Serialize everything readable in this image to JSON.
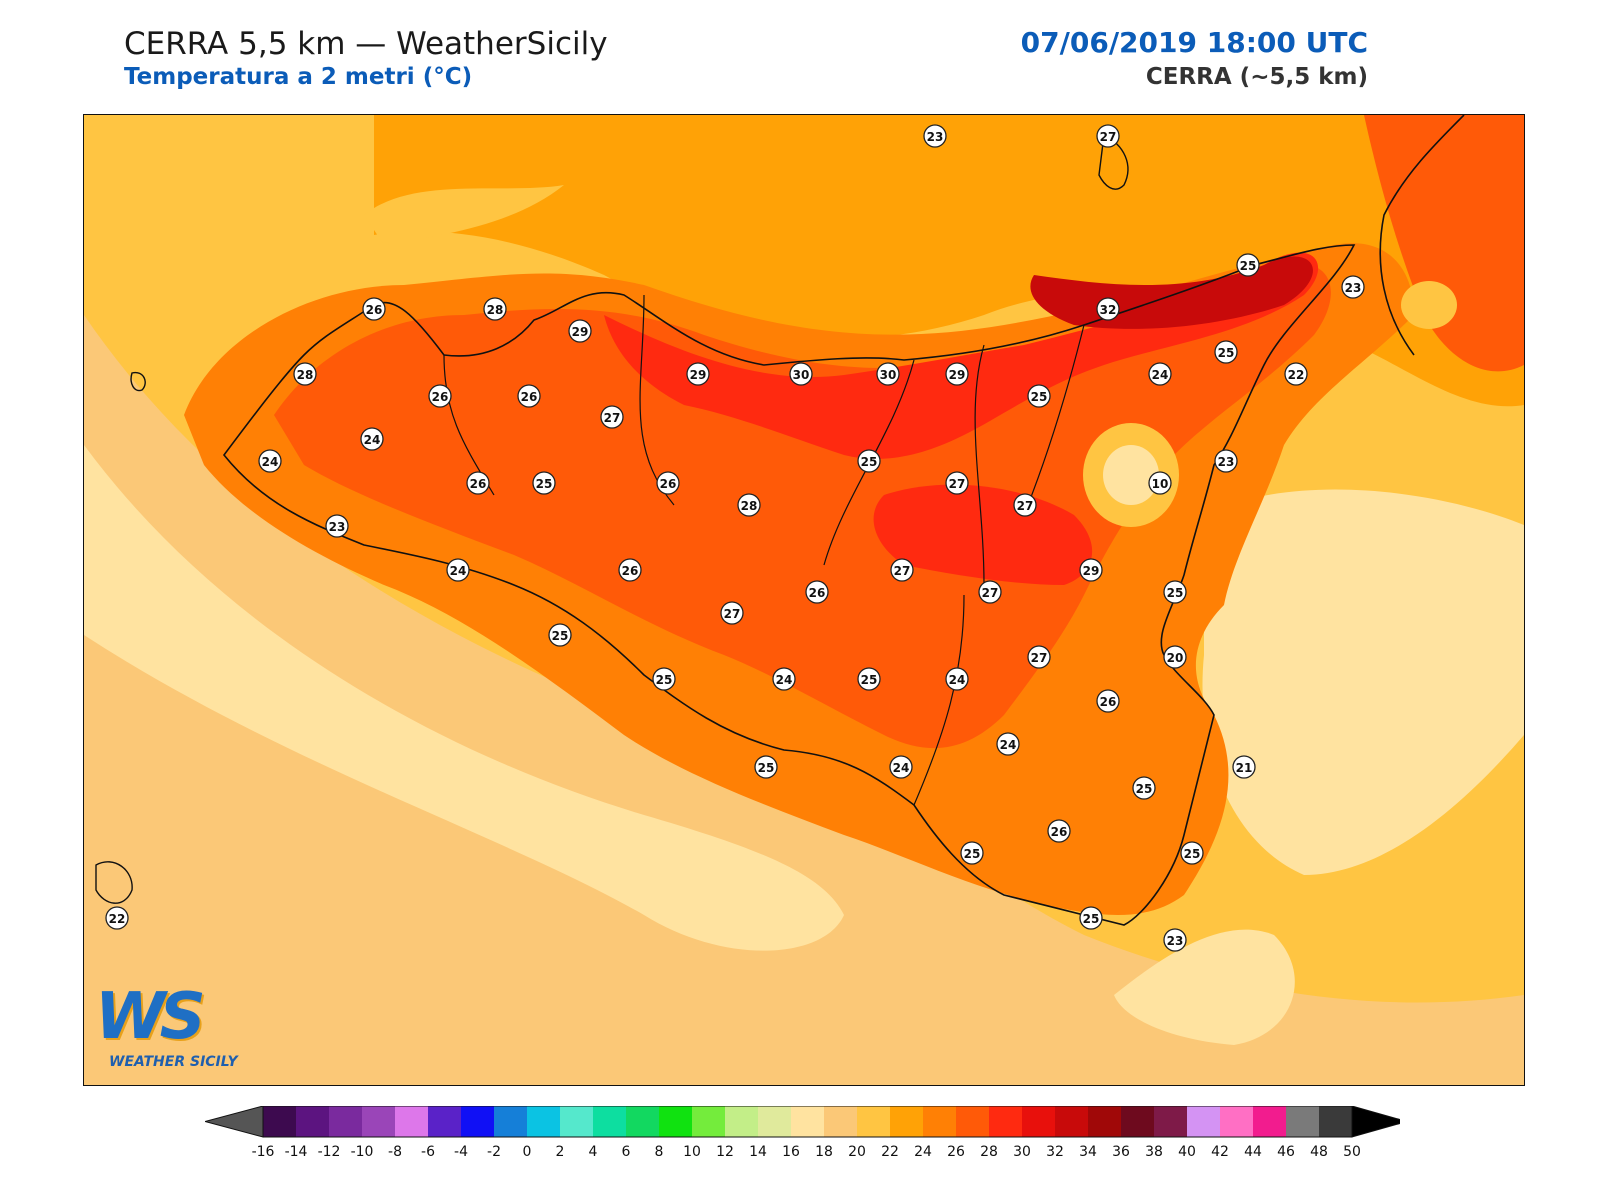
{
  "header": {
    "title": "CERRA 5,5 km — WeatherSicily",
    "subtitle": "Temperatura a 2 metri (°C)",
    "datetime": "07/06/2019 18:00 UTC",
    "model": "CERRA (~5,5 km)"
  },
  "logo": {
    "mark": "WS",
    "name": "WEATHER SICILY"
  },
  "stations": [
    {
      "value": "23"
    },
    {
      "value": "27"
    },
    {
      "value": "25"
    },
    {
      "value": "23"
    },
    {
      "value": "26"
    },
    {
      "value": "28"
    },
    {
      "value": "29"
    },
    {
      "value": "32"
    },
    {
      "value": "25"
    },
    {
      "value": "28"
    },
    {
      "value": "26"
    },
    {
      "value": "26"
    },
    {
      "value": "29"
    },
    {
      "value": "30"
    },
    {
      "value": "30"
    },
    {
      "value": "29"
    },
    {
      "value": "25"
    },
    {
      "value": "24"
    },
    {
      "value": "22"
    },
    {
      "value": "24"
    },
    {
      "value": "27"
    },
    {
      "value": "24"
    },
    {
      "value": "26"
    },
    {
      "value": "25"
    },
    {
      "value": "26"
    },
    {
      "value": "25"
    },
    {
      "value": "27"
    },
    {
      "value": "10"
    },
    {
      "value": "23"
    },
    {
      "value": "28"
    },
    {
      "value": "27"
    },
    {
      "value": "23"
    },
    {
      "value": "24"
    },
    {
      "value": "26"
    },
    {
      "value": "26"
    },
    {
      "value": "27"
    },
    {
      "value": "27"
    },
    {
      "value": "29"
    },
    {
      "value": "25"
    },
    {
      "value": "27"
    },
    {
      "value": "25"
    },
    {
      "value": "27"
    },
    {
      "value": "20"
    },
    {
      "value": "25"
    },
    {
      "value": "24"
    },
    {
      "value": "25"
    },
    {
      "value": "24"
    },
    {
      "value": "26"
    },
    {
      "value": "24"
    },
    {
      "value": "25"
    },
    {
      "value": "24"
    },
    {
      "value": "21"
    },
    {
      "value": "25"
    },
    {
      "value": "26"
    },
    {
      "value": "25"
    },
    {
      "value": "25"
    },
    {
      "value": "22"
    },
    {
      "value": "25"
    },
    {
      "value": "23"
    }
  ],
  "colorbar": {
    "ticks": [
      "-16",
      "-14",
      "-12",
      "-10",
      "-8",
      "-6",
      "-4",
      "-2",
      "0",
      "2",
      "4",
      "6",
      "8",
      "10",
      "12",
      "14",
      "16",
      "18",
      "20",
      "22",
      "24",
      "26",
      "28",
      "30",
      "32",
      "34",
      "36",
      "38",
      "40",
      "42",
      "44",
      "46",
      "48",
      "50"
    ],
    "colors": [
      "#3d0a4f",
      "#5c1480",
      "#7a2a9e",
      "#9a45b8",
      "#dd77ea",
      "#5a22c8",
      "#1010f5",
      "#157fd8",
      "#0bc3e3",
      "#55e8cc",
      "#0ddea0",
      "#12d860",
      "#10e210",
      "#74ec3c",
      "#c3ee88",
      "#e0ea9c",
      "#ffe3a0",
      "#fbc877",
      "#ffc542",
      "#ffa206",
      "#ff8005",
      "#ff5a08",
      "#ff2a10",
      "#e8100c",
      "#c80a0a",
      "#a00808",
      "#6e0a1e",
      "#7e1a48",
      "#d493f3",
      "#ff6fc4",
      "#f21c8e",
      "#7a7a7a",
      "#3a3a3a"
    ]
  }
}
